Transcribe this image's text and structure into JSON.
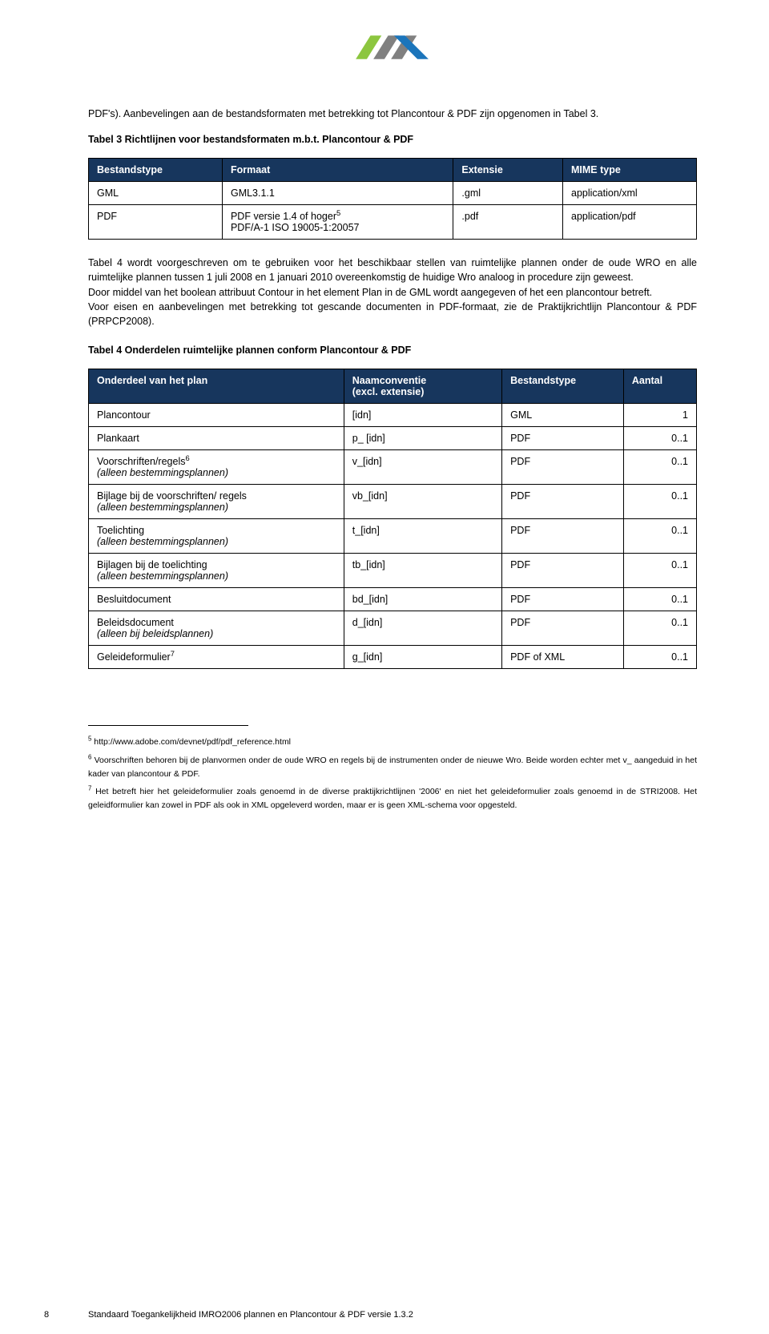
{
  "logo_colors": {
    "green": "#8cc63f",
    "gray": "#808080",
    "blue": "#1b75bb"
  },
  "para1": "PDF's). Aanbevelingen aan de bestandsformaten met betrekking tot Plancontour & PDF zijn opgenomen in Tabel 3.",
  "tab3_title": "Tabel 3 Richtlijnen voor bestandsformaten m.b.t. Plancontour & PDF",
  "tab3": {
    "headers": [
      "Bestandstype",
      "Formaat",
      "Extensie",
      "MIME type"
    ],
    "rows": [
      [
        "GML",
        "GML3.1.1",
        ".gml",
        "application/xml"
      ],
      [
        "PDF",
        [
          "PDF versie 1.4 of hoger",
          "5",
          "PDF/A-1 ISO 19005-1:20057"
        ],
        ".pdf",
        "application/pdf"
      ]
    ]
  },
  "para2a": "Tabel 4 wordt voorgeschreven om te gebruiken voor het beschikbaar stellen van ruimtelijke plannen onder de oude WRO en alle ruimtelijke plannen tussen 1 juli 2008 en 1 januari 2010 overeenkomstig de huidige Wro analoog in procedure zijn geweest.",
  "para2b": "Door middel van het boolean attribuut Contour in het element Plan in de GML wordt aangegeven of het een plancontour betreft.",
  "para2c": "Voor eisen en aanbevelingen met betrekking tot gescande documenten in PDF-formaat, zie de Praktijkrichtlijn Plancontour & PDF (PRPCP2008).",
  "tab4_title": "Tabel 4 Onderdelen ruimtelijke plannen conform Plancontour & PDF",
  "tab4": {
    "headers": [
      "Onderdeel van het plan",
      "Naamconventie (excl. extensie)",
      "Bestandstype",
      "Aantal"
    ],
    "rows": [
      {
        "c1": "Plancontour",
        "sub": "",
        "c2": " [idn]",
        "c3": "GML",
        "c4": "1",
        "sup": ""
      },
      {
        "c1": "Plankaart",
        "sub": "",
        "c2": "p_ [idn]",
        "c3": "PDF",
        "c4": "0..1",
        "sup": ""
      },
      {
        "c1": "Voorschriften/regels",
        "sub": "(alleen bestemmingsplannen)",
        "c2": "v_[idn]",
        "c3": "PDF",
        "c4": "0..1",
        "sup": "6"
      },
      {
        "c1": "Bijlage bij de voorschriften/ regels",
        "sub": "(alleen bestemmingsplannen)",
        "c2": "vb_[idn]",
        "c3": "PDF",
        "c4": "0..1",
        "sup": ""
      },
      {
        "c1": "Toelichting",
        "sub": "(alleen bestemmingsplannen)",
        "c2": " t_[idn]",
        "c3": "PDF",
        "c4": "0..1",
        "sup": ""
      },
      {
        "c1": "Bijlagen bij de toelichting",
        "sub": "(alleen bestemmingsplannen)",
        "c2": "tb_[idn]",
        "c3": "PDF",
        "c4": "0..1",
        "sup": ""
      },
      {
        "c1": "Besluitdocument",
        "sub": "",
        "c2": "bd_[idn]",
        "c3": "PDF",
        "c4": "0..1",
        "sup": ""
      },
      {
        "c1": "Beleidsdocument",
        "sub": "(alleen bij beleidsplannen)",
        "c2": " d_[idn]",
        "c3": "PDF",
        "c4": "0..1",
        "sup": ""
      },
      {
        "c1": "Geleideformulier",
        "sub": "",
        "c2": "g_[idn]",
        "c3": "PDF of XML",
        "c4": "0..1",
        "sup": "7"
      }
    ]
  },
  "footnotes": [
    {
      "n": "5",
      "t": " http://www.adobe.com/devnet/pdf/pdf_reference.html"
    },
    {
      "n": "6",
      "t": " Voorschriften behoren bij de planvormen onder de oude WRO en regels bij de instrumenten onder de nieuwe Wro. Beide worden echter met v_ aangeduid in het kader van plancontour & PDF."
    },
    {
      "n": "7",
      "t": " Het betreft hier het geleideformulier zoals genoemd in de diverse praktijkrichtlijnen '2006' en niet het geleideformulier zoals genoemd in de STRI2008. Het geleidformulier kan zowel in PDF als ook in XML opgeleverd worden, maar er is geen XML-schema voor opgesteld."
    }
  ],
  "footer": {
    "page": "8",
    "text": "Standaard Toegankelijkheid IMRO2006 plannen en Plancontour & PDF  versie 1.3.2"
  }
}
